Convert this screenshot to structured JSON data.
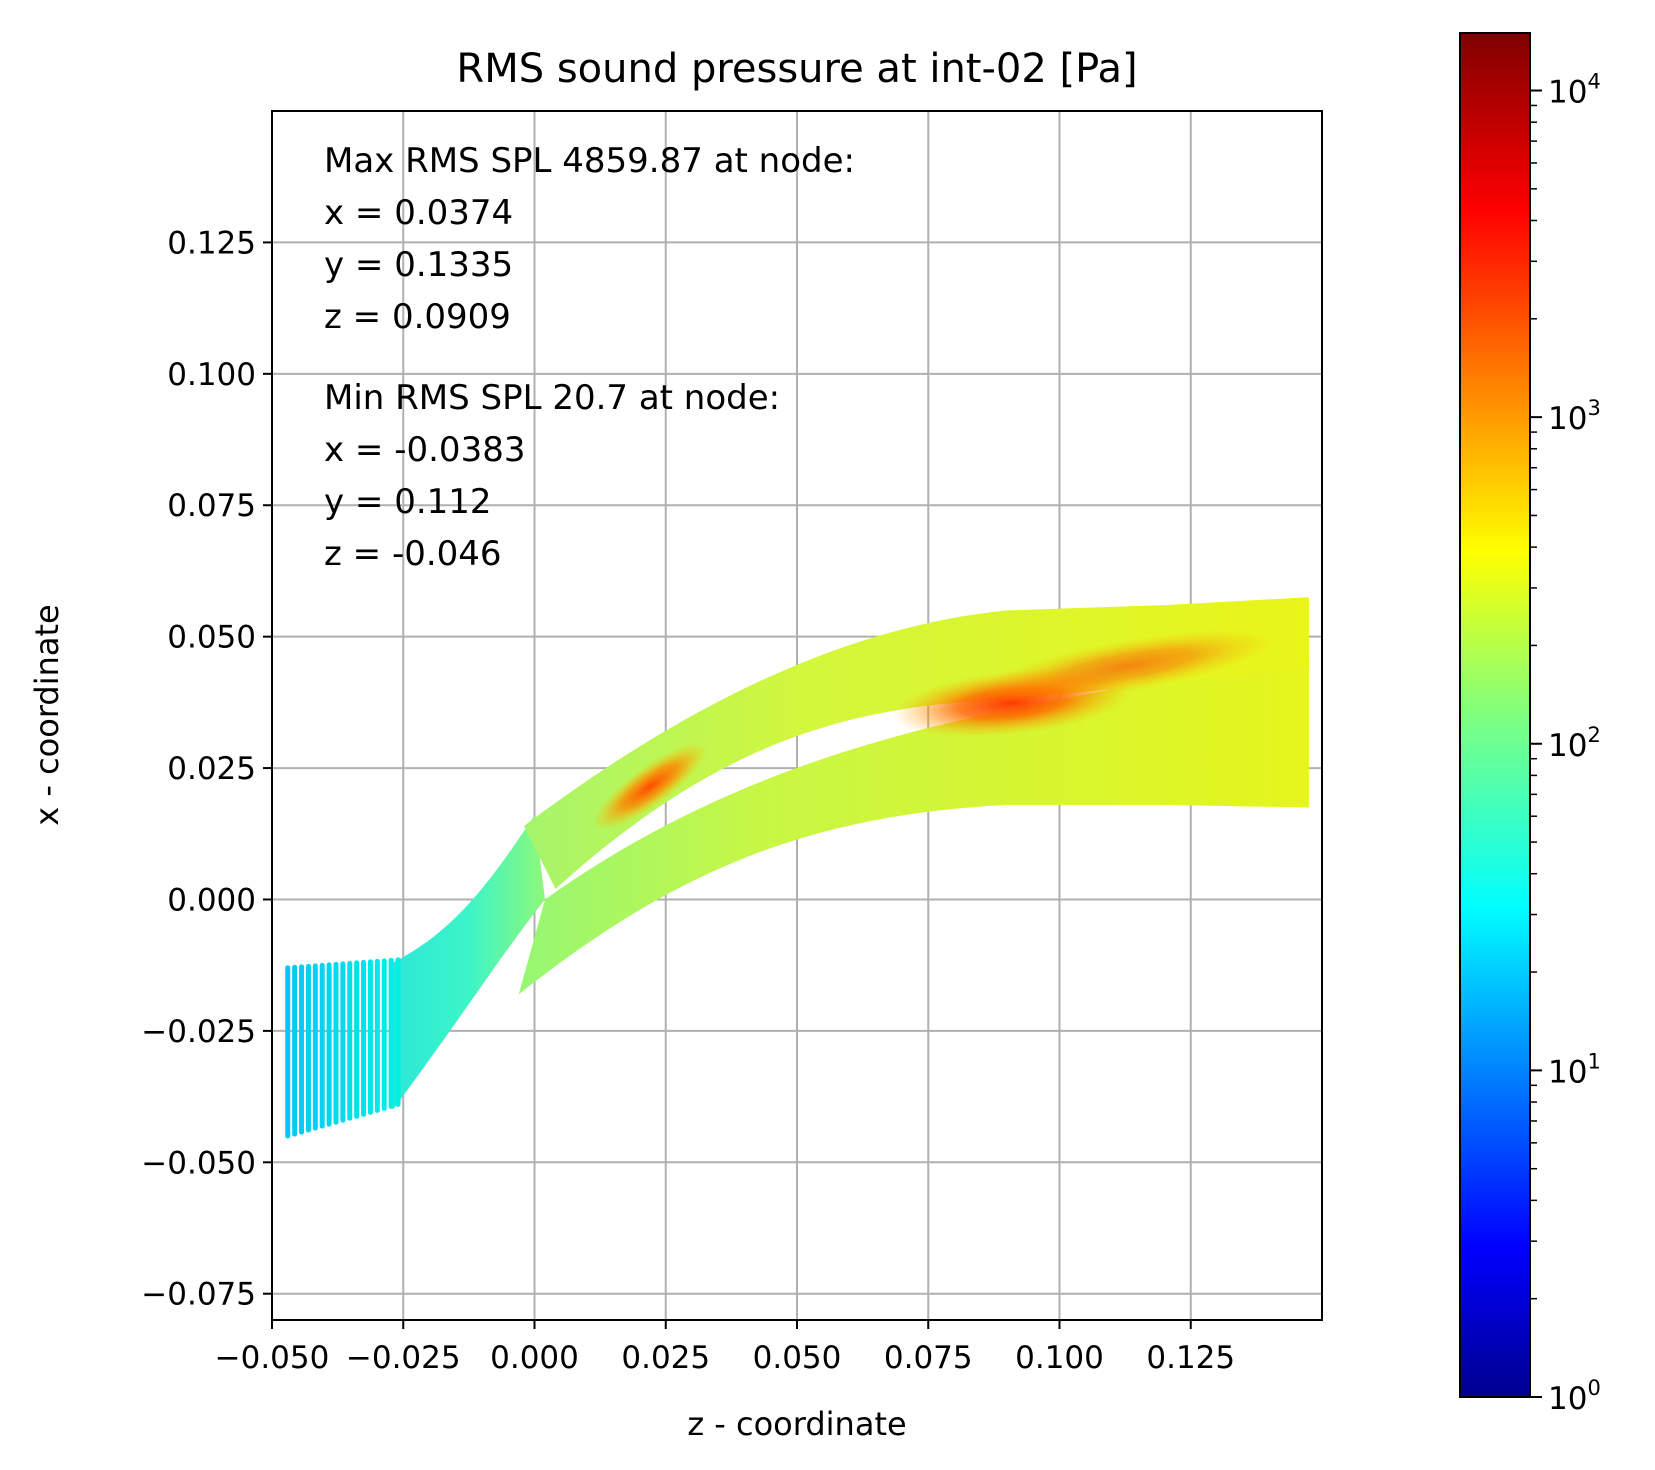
{
  "chart_data": {
    "type": "heatmap",
    "title": "RMS sound pressure at int-02 [Pa]",
    "xlabel": "z - coordinate",
    "ylabel": "x - coordinate",
    "xlim": [
      -0.05,
      0.15
    ],
    "ylim": [
      -0.08,
      0.15
    ],
    "xticks": [
      -0.05,
      -0.025,
      0.0,
      0.025,
      0.05,
      0.075,
      0.1,
      0.125
    ],
    "xtick_labels": [
      "−0.050",
      "−0.025",
      "0.000",
      "0.025",
      "0.050",
      "0.075",
      "0.100",
      "0.125"
    ],
    "yticks": [
      -0.075,
      -0.05,
      -0.025,
      0.0,
      0.025,
      0.05,
      0.075,
      0.1,
      0.125
    ],
    "ytick_labels": [
      "−0.075",
      "−0.050",
      "−0.025",
      "0.000",
      "0.025",
      "0.050",
      "0.075",
      "0.100",
      "0.125"
    ],
    "grid": true,
    "colormap": "jet",
    "color_scale": "log",
    "colorbar_range": [
      1,
      15000
    ],
    "colorbar_tick_labels": [
      {
        "base": "10",
        "exp": "0",
        "value": 1
      },
      {
        "base": "10",
        "exp": "1",
        "value": 10
      },
      {
        "base": "10",
        "exp": "2",
        "value": 100
      },
      {
        "base": "10",
        "exp": "3",
        "value": 1000
      },
      {
        "base": "10",
        "exp": "4",
        "value": 10000
      }
    ],
    "annotation_lines": [
      "Max RMS SPL 4859.87 at node:",
      "x = 0.0374",
      "y = 0.1335",
      "z = 0.0909",
      "Min RMS SPL 20.7 at node:",
      "x = -0.0383",
      "y = 0.112",
      "z = -0.046"
    ],
    "max_node": {
      "value": 4859.87,
      "x": 0.0374,
      "y": 0.1335,
      "z": 0.0909
    },
    "min_node": {
      "value": 20.7,
      "x": -0.0383,
      "y": 0.112,
      "z": -0.046
    },
    "regions": {
      "inlet_fan": {
        "z_range": [
          -0.047,
          -0.026
        ],
        "x_range": [
          -0.045,
          -0.013
        ],
        "rms_pa": 20
      },
      "inlet_channel": {
        "rms_pa": 50
      },
      "upper_channel": {
        "rms_pa": 300
      },
      "lower_channel": {
        "rms_pa": 450
      },
      "outlet": {
        "z_end": 0.1475,
        "x_range": [
          0.018,
          0.057
        ],
        "rms_pa": 520
      },
      "hot_spots": [
        {
          "z": 0.0909,
          "x": 0.0374,
          "rms_pa": 4859.87
        },
        {
          "z": 0.022,
          "x": 0.0215,
          "rms_pa": 2200
        }
      ]
    }
  }
}
